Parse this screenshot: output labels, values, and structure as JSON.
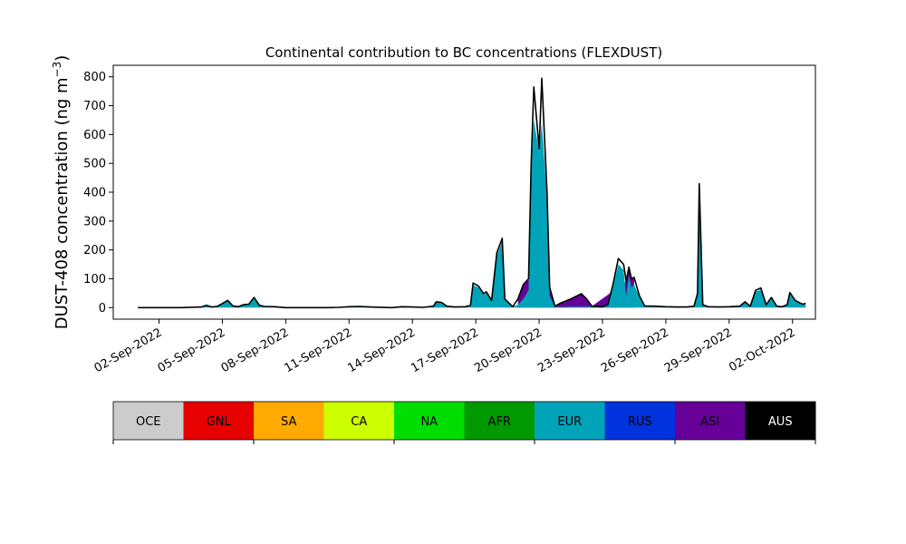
{
  "chart_data": {
    "type": "area",
    "title": "Continental contribution to BC concentrations (FLEXDUST)",
    "ylabel_main": "DUST-408 concentration (ng m",
    "ylabel_unit_sup": "−3",
    "ylabel_close": ")",
    "xlabel": "",
    "x_start": "2022-08-31",
    "x_end": "2022-10-02",
    "xlim": [
      "2022-08-30T20:00",
      "2022-10-03T02:00"
    ],
    "ylim": [
      -40,
      840
    ],
    "y_ticks": [
      0,
      100,
      200,
      300,
      400,
      500,
      600,
      700,
      800
    ],
    "x_ticks": [
      {
        "date": "2022-09-02",
        "label": "02-Sep-2022"
      },
      {
        "date": "2022-09-05",
        "label": "05-Sep-2022"
      },
      {
        "date": "2022-09-08",
        "label": "08-Sep-2022"
      },
      {
        "date": "2022-09-11",
        "label": "11-Sep-2022"
      },
      {
        "date": "2022-09-14",
        "label": "14-Sep-2022"
      },
      {
        "date": "2022-09-17",
        "label": "17-Sep-2022"
      },
      {
        "date": "2022-09-20",
        "label": "20-Sep-2022"
      },
      {
        "date": "2022-09-23",
        "label": "23-Sep-2022"
      },
      {
        "date": "2022-09-26",
        "label": "26-Sep-2022"
      },
      {
        "date": "2022-09-29",
        "label": "29-Sep-2022"
      },
      {
        "date": "2022-10-02",
        "label": "02-Oct-2022"
      }
    ],
    "legend": [
      {
        "name": "OCE",
        "color": "#cccccc",
        "text_color": "#000000"
      },
      {
        "name": "GNL",
        "color": "#e60000",
        "text_color": "#000000"
      },
      {
        "name": "SA",
        "color": "#ffaa00",
        "text_color": "#000000"
      },
      {
        "name": "CA",
        "color": "#ccff00",
        "text_color": "#000000"
      },
      {
        "name": "NA",
        "color": "#00dd00",
        "text_color": "#000000"
      },
      {
        "name": "AFR",
        "color": "#009900",
        "text_color": "#000000"
      },
      {
        "name": "EUR",
        "color": "#00a3b8",
        "text_color": "#000000"
      },
      {
        "name": "RUS",
        "color": "#0033dd",
        "text_color": "#000000"
      },
      {
        "name": "ASI",
        "color": "#660099",
        "text_color": "#000000"
      },
      {
        "name": "AUS",
        "color": "#000000",
        "text_color": "#ffffff"
      }
    ],
    "total_series": [
      [
        "2022-09-01T00:00",
        0
      ],
      [
        "2022-09-03T00:00",
        0
      ],
      [
        "2022-09-04T00:00",
        2
      ],
      [
        "2022-09-04T06:00",
        8
      ],
      [
        "2022-09-04T12:00",
        2
      ],
      [
        "2022-09-04T18:00",
        4
      ],
      [
        "2022-09-05T00:00",
        14
      ],
      [
        "2022-09-05T06:00",
        25
      ],
      [
        "2022-09-05T12:00",
        6
      ],
      [
        "2022-09-05T18:00",
        3
      ],
      [
        "2022-09-06T00:00",
        10
      ],
      [
        "2022-09-06T06:00",
        12
      ],
      [
        "2022-09-06T12:00",
        35
      ],
      [
        "2022-09-06T18:00",
        8
      ],
      [
        "2022-09-07T00:00",
        4
      ],
      [
        "2022-09-07T12:00",
        3
      ],
      [
        "2022-09-08T00:00",
        0
      ],
      [
        "2022-09-10T00:00",
        0
      ],
      [
        "2022-09-10T12:00",
        1
      ],
      [
        "2022-09-11T00:00",
        3
      ],
      [
        "2022-09-11T12:00",
        4
      ],
      [
        "2022-09-12T00:00",
        2
      ],
      [
        "2022-09-13T00:00",
        0
      ],
      [
        "2022-09-13T12:00",
        3
      ],
      [
        "2022-09-14T00:00",
        2
      ],
      [
        "2022-09-14T12:00",
        1
      ],
      [
        "2022-09-15T00:00",
        5
      ],
      [
        "2022-09-15T03:00",
        20
      ],
      [
        "2022-09-15T09:00",
        18
      ],
      [
        "2022-09-15T15:00",
        5
      ],
      [
        "2022-09-16T00:00",
        2
      ],
      [
        "2022-09-16T12:00",
        3
      ],
      [
        "2022-09-16T18:00",
        8
      ],
      [
        "2022-09-16T21:00",
        85
      ],
      [
        "2022-09-17T03:00",
        75
      ],
      [
        "2022-09-17T09:00",
        48
      ],
      [
        "2022-09-17T12:00",
        55
      ],
      [
        "2022-09-17T18:00",
        25
      ],
      [
        "2022-09-18T00:00",
        190
      ],
      [
        "2022-09-18T06:00",
        240
      ],
      [
        "2022-09-18T09:00",
        30
      ],
      [
        "2022-09-18T18:00",
        3
      ],
      [
        "2022-09-19T00:00",
        30
      ],
      [
        "2022-09-19T06:00",
        80
      ],
      [
        "2022-09-19T12:00",
        100
      ],
      [
        "2022-09-19T15:00",
        500
      ],
      [
        "2022-09-19T18:00",
        765
      ],
      [
        "2022-09-20T00:00",
        550
      ],
      [
        "2022-09-20T03:00",
        795
      ],
      [
        "2022-09-20T09:00",
        400
      ],
      [
        "2022-09-20T12:00",
        70
      ],
      [
        "2022-09-20T18:00",
        5
      ],
      [
        "2022-09-21T00:00",
        15
      ],
      [
        "2022-09-21T12:00",
        30
      ],
      [
        "2022-09-22T00:00",
        48
      ],
      [
        "2022-09-22T06:00",
        30
      ],
      [
        "2022-09-22T12:00",
        5
      ],
      [
        "2022-09-23T00:00",
        3
      ],
      [
        "2022-09-23T06:00",
        10
      ],
      [
        "2022-09-23T12:00",
        80
      ],
      [
        "2022-09-23T18:00",
        170
      ],
      [
        "2022-09-24T00:00",
        150
      ],
      [
        "2022-09-24T03:00",
        90
      ],
      [
        "2022-09-24T06:00",
        140
      ],
      [
        "2022-09-24T09:00",
        100
      ],
      [
        "2022-09-24T12:00",
        105
      ],
      [
        "2022-09-24T18:00",
        40
      ],
      [
        "2022-09-25T00:00",
        6
      ],
      [
        "2022-09-25T12:00",
        5
      ],
      [
        "2022-09-26T00:00",
        3
      ],
      [
        "2022-09-26T12:00",
        2
      ],
      [
        "2022-09-27T00:00",
        2
      ],
      [
        "2022-09-27T08:00",
        5
      ],
      [
        "2022-09-27T12:00",
        50
      ],
      [
        "2022-09-27T14:00",
        430
      ],
      [
        "2022-09-27T18:00",
        10
      ],
      [
        "2022-09-28T00:00",
        3
      ],
      [
        "2022-09-28T12:00",
        2
      ],
      [
        "2022-09-29T00:00",
        3
      ],
      [
        "2022-09-29T12:00",
        5
      ],
      [
        "2022-09-29T18:00",
        20
      ],
      [
        "2022-09-30T00:00",
        5
      ],
      [
        "2022-09-30T06:00",
        60
      ],
      [
        "2022-09-30T12:00",
        68
      ],
      [
        "2022-09-30T18:00",
        10
      ],
      [
        "2022-10-01T00:00",
        35
      ],
      [
        "2022-10-01T06:00",
        5
      ],
      [
        "2022-10-01T12:00",
        3
      ],
      [
        "2022-10-01T18:00",
        10
      ],
      [
        "2022-10-01T21:00",
        52
      ],
      [
        "2022-10-02T03:00",
        25
      ],
      [
        "2022-10-02T09:00",
        15
      ],
      [
        "2022-10-02T12:00",
        12
      ],
      [
        "2022-10-02T15:00",
        15
      ]
    ],
    "asi_series": [
      [
        "2022-09-19T00:00",
        30
      ],
      [
        "2022-09-19T06:00",
        80
      ],
      [
        "2022-09-19T12:00",
        95
      ],
      [
        "2022-09-20T12:00",
        70
      ],
      [
        "2022-09-20T18:00",
        5
      ],
      [
        "2022-09-21T00:00",
        15
      ],
      [
        "2022-09-21T12:00",
        30
      ],
      [
        "2022-09-22T00:00",
        48
      ],
      [
        "2022-09-22T06:00",
        30
      ],
      [
        "2022-09-22T12:00",
        5
      ],
      [
        "2022-09-24T03:00",
        90
      ],
      [
        "2022-09-24T06:00",
        135
      ],
      [
        "2022-09-24T09:00",
        100
      ],
      [
        "2022-09-24T12:00",
        100
      ]
    ],
    "eur_series": [
      [
        "2022-09-01T00:00",
        0
      ],
      [
        "2022-09-03T00:00",
        0
      ],
      [
        "2022-09-04T00:00",
        2
      ],
      [
        "2022-09-04T06:00",
        7
      ],
      [
        "2022-09-04T12:00",
        2
      ],
      [
        "2022-09-04T18:00",
        3
      ],
      [
        "2022-09-05T00:00",
        12
      ],
      [
        "2022-09-05T06:00",
        22
      ],
      [
        "2022-09-05T12:00",
        5
      ],
      [
        "2022-09-05T18:00",
        2
      ],
      [
        "2022-09-06T00:00",
        8
      ],
      [
        "2022-09-06T06:00",
        10
      ],
      [
        "2022-09-06T12:00",
        30
      ],
      [
        "2022-09-06T18:00",
        7
      ],
      [
        "2022-09-07T00:00",
        3
      ],
      [
        "2022-09-07T12:00",
        2
      ],
      [
        "2022-09-08T00:00",
        0
      ],
      [
        "2022-09-10T00:00",
        0
      ],
      [
        "2022-09-10T12:00",
        1
      ],
      [
        "2022-09-11T00:00",
        2
      ],
      [
        "2022-09-11T12:00",
        3
      ],
      [
        "2022-09-12T00:00",
        2
      ],
      [
        "2022-09-13T00:00",
        0
      ],
      [
        "2022-09-13T12:00",
        2
      ],
      [
        "2022-09-14T00:00",
        2
      ],
      [
        "2022-09-14T12:00",
        1
      ],
      [
        "2022-09-15T00:00",
        4
      ],
      [
        "2022-09-15T03:00",
        18
      ],
      [
        "2022-09-15T09:00",
        16
      ],
      [
        "2022-09-15T15:00",
        4
      ],
      [
        "2022-09-16T00:00",
        2
      ],
      [
        "2022-09-16T12:00",
        3
      ],
      [
        "2022-09-16T18:00",
        7
      ],
      [
        "2022-09-16T21:00",
        78
      ],
      [
        "2022-09-17T03:00",
        70
      ],
      [
        "2022-09-17T09:00",
        44
      ],
      [
        "2022-09-17T12:00",
        50
      ],
      [
        "2022-09-17T18:00",
        22
      ],
      [
        "2022-09-18T00:00",
        180
      ],
      [
        "2022-09-18T06:00",
        230
      ],
      [
        "2022-09-18T09:00",
        28
      ],
      [
        "2022-09-18T18:00",
        3
      ],
      [
        "2022-09-19T00:00",
        10
      ],
      [
        "2022-09-19T06:00",
        30
      ],
      [
        "2022-09-19T12:00",
        60
      ],
      [
        "2022-09-19T15:00",
        480
      ],
      [
        "2022-09-19T18:00",
        650
      ],
      [
        "2022-09-20T00:00",
        540
      ],
      [
        "2022-09-20T03:00",
        640
      ],
      [
        "2022-09-20T09:00",
        380
      ],
      [
        "2022-09-20T12:00",
        40
      ],
      [
        "2022-09-20T18:00",
        3
      ],
      [
        "2022-09-21T00:00",
        2
      ],
      [
        "2022-09-21T12:00",
        3
      ],
      [
        "2022-09-22T00:00",
        3
      ],
      [
        "2022-09-22T06:00",
        3
      ],
      [
        "2022-09-22T12:00",
        3
      ],
      [
        "2022-09-23T00:00",
        2
      ],
      [
        "2022-09-23T06:00",
        8
      ],
      [
        "2022-09-23T12:00",
        70
      ],
      [
        "2022-09-23T18:00",
        150
      ],
      [
        "2022-09-24T00:00",
        130
      ],
      [
        "2022-09-24T03:00",
        40
      ],
      [
        "2022-09-24T06:00",
        110
      ],
      [
        "2022-09-24T09:00",
        70
      ],
      [
        "2022-09-24T12:00",
        80
      ],
      [
        "2022-09-24T18:00",
        35
      ],
      [
        "2022-09-25T00:00",
        5
      ],
      [
        "2022-09-25T12:00",
        4
      ],
      [
        "2022-09-26T00:00",
        2
      ],
      [
        "2022-09-26T12:00",
        2
      ],
      [
        "2022-09-27T00:00",
        2
      ],
      [
        "2022-09-27T08:00",
        4
      ],
      [
        "2022-09-27T12:00",
        45
      ],
      [
        "2022-09-27T14:00",
        410
      ],
      [
        "2022-09-27T18:00",
        8
      ],
      [
        "2022-09-28T00:00",
        2
      ],
      [
        "2022-09-28T12:00",
        2
      ],
      [
        "2022-09-29T00:00",
        2
      ],
      [
        "2022-09-29T12:00",
        4
      ],
      [
        "2022-09-29T18:00",
        17
      ],
      [
        "2022-09-30T00:00",
        4
      ],
      [
        "2022-09-30T06:00",
        55
      ],
      [
        "2022-09-30T12:00",
        62
      ],
      [
        "2022-09-30T18:00",
        8
      ],
      [
        "2022-10-01T00:00",
        30
      ],
      [
        "2022-10-01T06:00",
        4
      ],
      [
        "2022-10-01T12:00",
        2
      ],
      [
        "2022-10-01T18:00",
        8
      ],
      [
        "2022-10-01T21:00",
        47
      ],
      [
        "2022-10-02T03:00",
        22
      ],
      [
        "2022-10-02T09:00",
        12
      ],
      [
        "2022-10-02T12:00",
        10
      ],
      [
        "2022-10-02T15:00",
        12
      ]
    ],
    "grid": false,
    "legend_placement": "below"
  }
}
